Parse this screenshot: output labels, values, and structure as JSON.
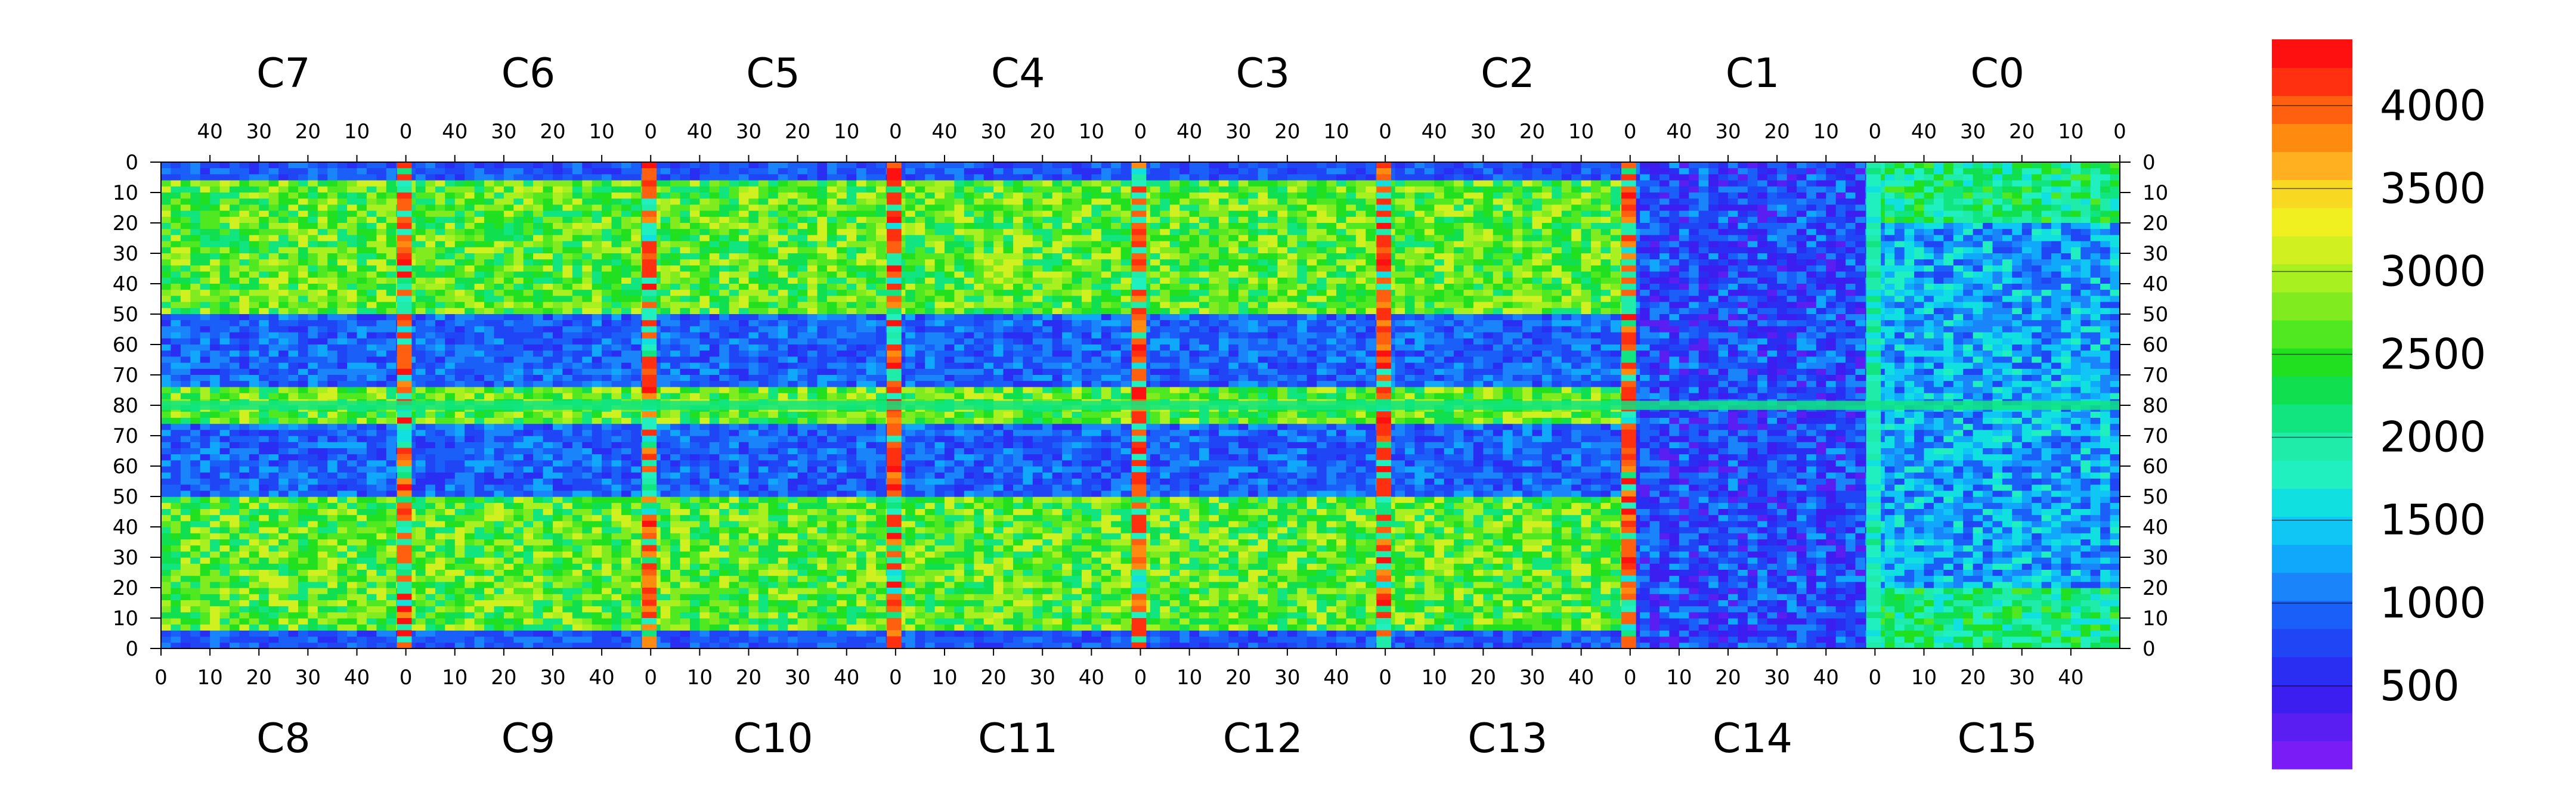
{
  "chart_data": {
    "type": "heatmap",
    "top_chips": [
      "C7",
      "C6",
      "C5",
      "C4",
      "C3",
      "C2",
      "C1",
      "C0"
    ],
    "bottom_chips": [
      "C8",
      "C9",
      "C10",
      "C11",
      "C12",
      "C13",
      "C14",
      "C15"
    ],
    "top_axis_ticks": [
      "40",
      "30",
      "20",
      "10",
      "0"
    ],
    "bottom_axis_ticks": [
      "0",
      "10",
      "20",
      "30",
      "40"
    ],
    "left_axis_ticks": [
      "0",
      "10",
      "20",
      "30",
      "40",
      "50",
      "60",
      "70",
      "80",
      "70",
      "60",
      "50",
      "40",
      "30",
      "20",
      "10",
      "0"
    ],
    "right_axis_ticks": [
      "0",
      "10",
      "20",
      "30",
      "40",
      "50",
      "60",
      "70",
      "80",
      "70",
      "60",
      "50",
      "40",
      "30",
      "20",
      "10",
      "0"
    ],
    "colorbar": {
      "range": [
        0,
        4400
      ],
      "ticks": [
        {
          "value": 500,
          "label": "500"
        },
        {
          "value": 1000,
          "label": "1000"
        },
        {
          "value": 1500,
          "label": "1500"
        },
        {
          "value": 2000,
          "label": "2000"
        },
        {
          "value": 2500,
          "label": "2500"
        },
        {
          "value": 3000,
          "label": "3000"
        },
        {
          "value": 3500,
          "label": "3500"
        },
        {
          "value": 4000,
          "label": "4000"
        }
      ],
      "colors": [
        "#7a1cf5",
        "#5a1ef2",
        "#3c1ff0",
        "#2a2ef2",
        "#1f45f5",
        "#1a5ff7",
        "#1a85fa",
        "#10a8fb",
        "#10c6f5",
        "#10e0e0",
        "#20f0c0",
        "#20ecaa",
        "#10e580",
        "#10e050",
        "#20e020",
        "#50e820",
        "#80ec20",
        "#a8f020",
        "#d0f020",
        "#f0f020",
        "#f8d820",
        "#ffb020",
        "#ff8a10",
        "#ff6010",
        "#ff3010",
        "#ff1010"
      ]
    }
  }
}
